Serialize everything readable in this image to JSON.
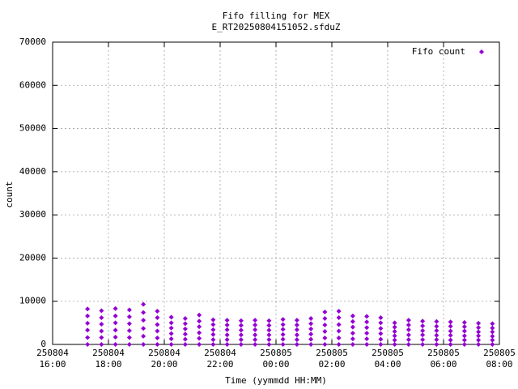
{
  "chart_data": {
    "type": "scatter",
    "title": "Fifo filling for MEX",
    "subtitle": "E_RT20250804151052.sfduZ",
    "x_label": "Time (yymmdd HH:MM)",
    "y_label": "count",
    "legend": "top-right",
    "grid": true,
    "xlim": [
      "250804 16:00",
      "250805 08:00"
    ],
    "xticks": [
      "250804 16:00",
      "250804 18:00",
      "250804 20:00",
      "250804 22:00",
      "250805 00:00",
      "250805 02:00",
      "250805 04:00",
      "250805 06:00",
      "250805 08:00"
    ],
    "ylim": [
      0,
      70000
    ],
    "yticks": [
      0,
      10000,
      20000,
      30000,
      40000,
      50000,
      60000,
      70000
    ],
    "series": [
      {
        "name": "Fifo count",
        "color": "#9400d3",
        "x": [
          "250804 17:15",
          "250804 17:45",
          "250804 18:15",
          "250804 18:45",
          "250804 19:15",
          "250804 19:45",
          "250804 20:15",
          "250804 20:45",
          "250804 21:15",
          "250804 21:45",
          "250804 22:15",
          "250804 22:45",
          "250804 23:15",
          "250804 23:45",
          "250805 00:15",
          "250805 00:45",
          "250805 01:15",
          "250805 01:45",
          "250805 02:15",
          "250805 02:45",
          "250805 03:15",
          "250805 03:45",
          "250805 04:15",
          "250805 04:45",
          "250805 05:15",
          "250805 05:45",
          "250805 06:15",
          "250805 06:45",
          "250805 07:15",
          "250805 07:45"
        ],
        "values": [
          [
            8200,
            6600,
            4900,
            3300,
            1600,
            0
          ],
          [
            7800,
            6200,
            4700,
            3100,
            1600,
            0
          ],
          [
            8300,
            6600,
            5000,
            3300,
            1700,
            0
          ],
          [
            8000,
            6400,
            4800,
            3200,
            1600,
            0
          ],
          [
            9300,
            7400,
            5600,
            3700,
            1900,
            0
          ],
          [
            7700,
            6200,
            4600,
            3100,
            1500,
            0
          ],
          [
            6300,
            5000,
            3800,
            2500,
            1300,
            0
          ],
          [
            6000,
            4800,
            3600,
            2400,
            1200,
            0
          ],
          [
            6800,
            5400,
            4100,
            2700,
            1400,
            0
          ],
          [
            5700,
            4600,
            3400,
            2300,
            1100,
            0
          ],
          [
            5600,
            4500,
            3400,
            2200,
            1100,
            0
          ],
          [
            5500,
            4400,
            3300,
            2200,
            1100,
            0
          ],
          [
            5600,
            4500,
            3400,
            2200,
            1100,
            0
          ],
          [
            5500,
            4400,
            3300,
            2200,
            1100,
            0
          ],
          [
            5800,
            4600,
            3500,
            2300,
            1200,
            0
          ],
          [
            5600,
            4500,
            3400,
            2200,
            1100,
            0
          ],
          [
            6000,
            4800,
            3600,
            2400,
            1200,
            0
          ],
          [
            7500,
            6000,
            4500,
            3000,
            1500,
            0
          ],
          [
            7700,
            6200,
            4600,
            3100,
            1500,
            0
          ],
          [
            6600,
            5300,
            4000,
            2600,
            1300,
            0
          ],
          [
            6500,
            5200,
            3900,
            2600,
            1300,
            0
          ],
          [
            6200,
            5000,
            3700,
            2500,
            1200,
            0
          ],
          [
            5000,
            4000,
            3000,
            2000,
            1000,
            0
          ],
          [
            5600,
            4500,
            3400,
            2200,
            1100,
            0
          ],
          [
            5400,
            4300,
            3200,
            2200,
            1100,
            0
          ],
          [
            5300,
            4200,
            3200,
            2100,
            1100,
            0
          ],
          [
            5200,
            4200,
            3100,
            2100,
            1000,
            0
          ],
          [
            5100,
            4100,
            3100,
            2000,
            1000,
            0
          ],
          [
            4900,
            3900,
            2900,
            2000,
            1000,
            0
          ],
          [
            4800,
            3800,
            2900,
            1900,
            1000,
            0
          ]
        ]
      }
    ]
  }
}
